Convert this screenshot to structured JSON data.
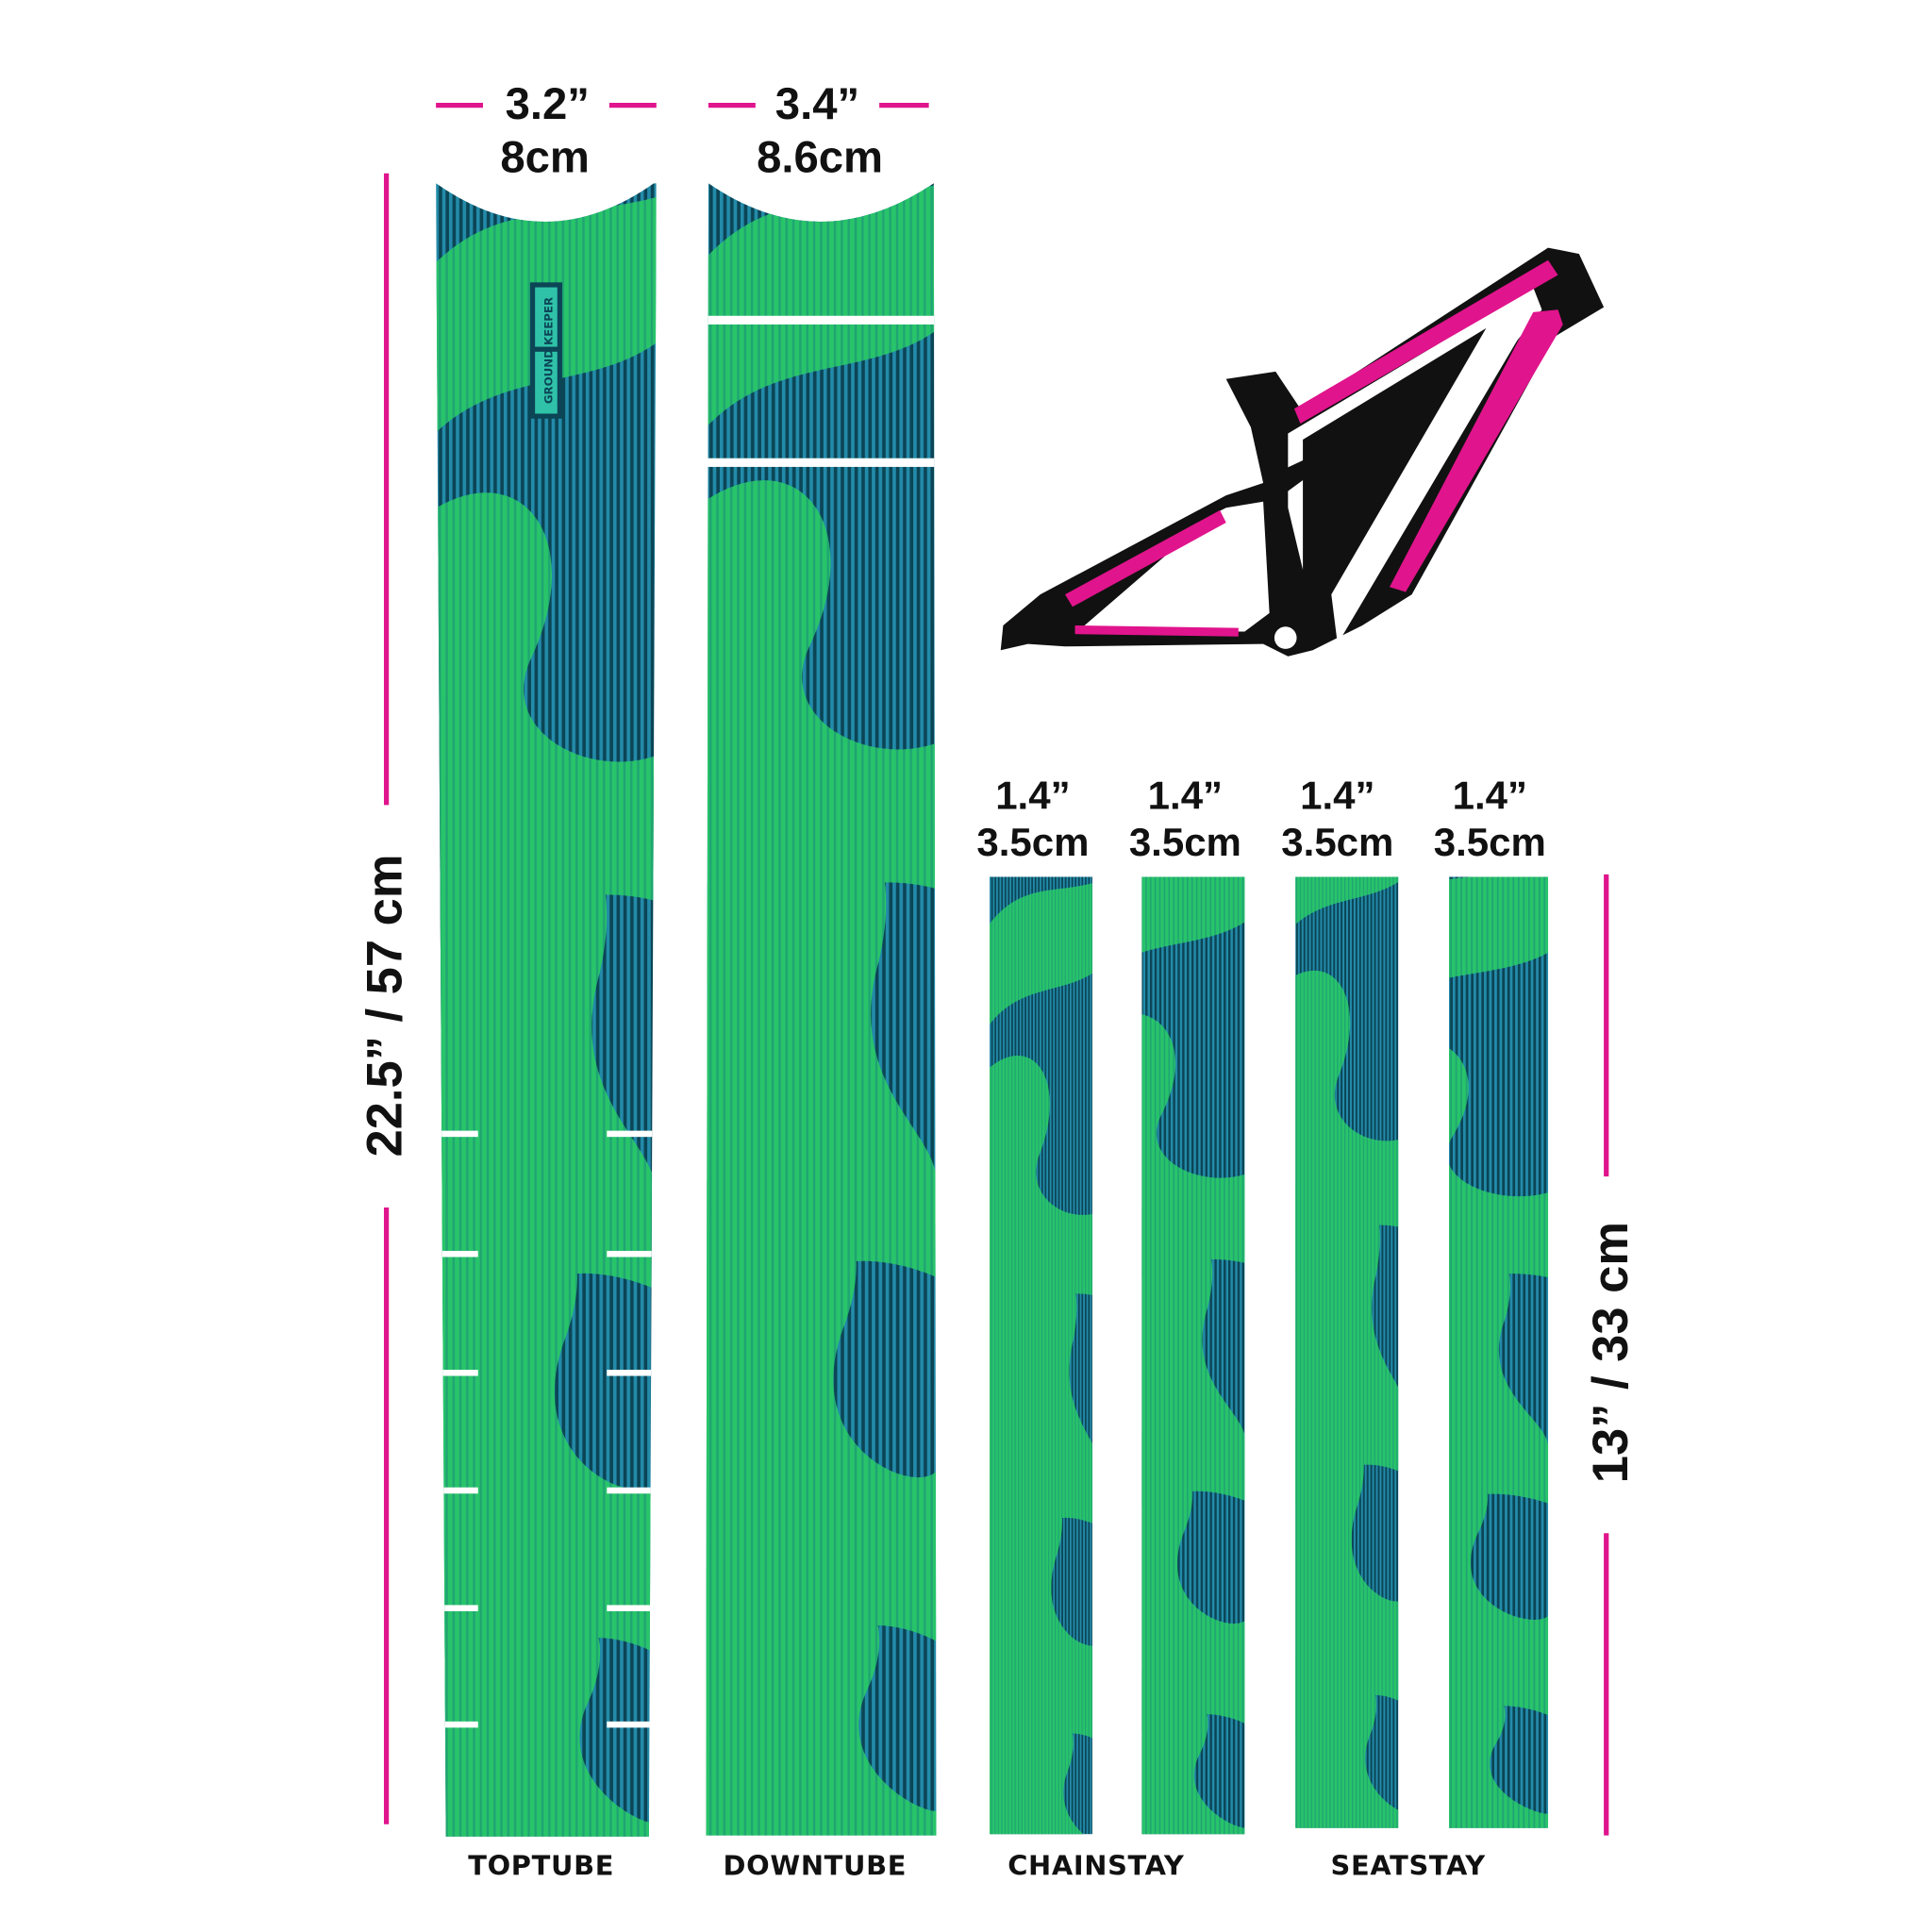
{
  "colors": {
    "accent_pink": "#e0148c",
    "strip_dark": "#0b4556",
    "strip_green": "#2fd66a",
    "strip_blue": "#2aa3c4",
    "text": "#111111",
    "frame": "#111111"
  },
  "logo": {
    "text": "GROUND KEEPER"
  },
  "toptube": {
    "width_in": "3.2”",
    "width_cm": "8cm",
    "label": "TOPTUBE"
  },
  "downtube": {
    "width_in": "3.4”",
    "width_cm": "8.6cm",
    "label": "DOWNTUBE"
  },
  "length_large": "22.5”  /  57 cm",
  "length_small": "13”  /  33 cm",
  "small_strips": [
    {
      "width_in": "1.4”",
      "width_cm": "3.5cm"
    },
    {
      "width_in": "1.4”",
      "width_cm": "3.5cm"
    },
    {
      "width_in": "1.4”",
      "width_cm": "3.5cm"
    },
    {
      "width_in": "1.4”",
      "width_cm": "3.5cm"
    }
  ],
  "labels": {
    "chainstay": "CHAINSTAY",
    "seatstay": "SEATSTAY"
  },
  "frame_icon": "bike-frame-diagram"
}
